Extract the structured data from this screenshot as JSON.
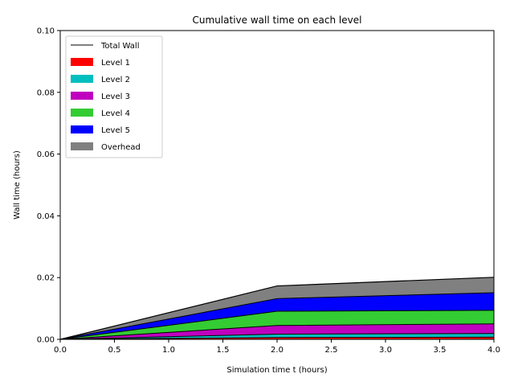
{
  "chart_data": {
    "type": "area",
    "title": "Cumulative wall time on each level",
    "xlabel": "Simulation time t (hours)",
    "ylabel": "Wall time (hours)",
    "xlim": [
      0.0,
      4.0
    ],
    "ylim": [
      0.0,
      0.1
    ],
    "xticks": [
      "0.0",
      "0.5",
      "1.0",
      "1.5",
      "2.0",
      "2.5",
      "3.0",
      "3.5",
      "4.0"
    ],
    "yticks": [
      "0.00",
      "0.02",
      "0.04",
      "0.06",
      "0.08",
      "0.10"
    ],
    "x": [
      0.0,
      2.0,
      4.0
    ],
    "stacked": true,
    "series": [
      {
        "name": "Level 1",
        "color": "#ff0000",
        "values": [
          0.0,
          0.0006,
          0.0007
        ]
      },
      {
        "name": "Level 2",
        "color": "#00bfbf",
        "values": [
          0.0,
          0.0011,
          0.0012
        ]
      },
      {
        "name": "Level 3",
        "color": "#bf00bf",
        "values": [
          0.0,
          0.0028,
          0.0031
        ]
      },
      {
        "name": "Level 4",
        "color": "#33cc33",
        "values": [
          0.0,
          0.0046,
          0.0044
        ]
      },
      {
        "name": "Level 5",
        "color": "#0000ff",
        "values": [
          0.0,
          0.0041,
          0.0057
        ]
      },
      {
        "name": "Overhead",
        "color": "#808080",
        "values": [
          0.0,
          0.0041,
          0.005
        ]
      }
    ],
    "total_line": {
      "name": "Total Wall",
      "color": "#000000"
    },
    "legend_position": "upper-left",
    "grid": false
  }
}
